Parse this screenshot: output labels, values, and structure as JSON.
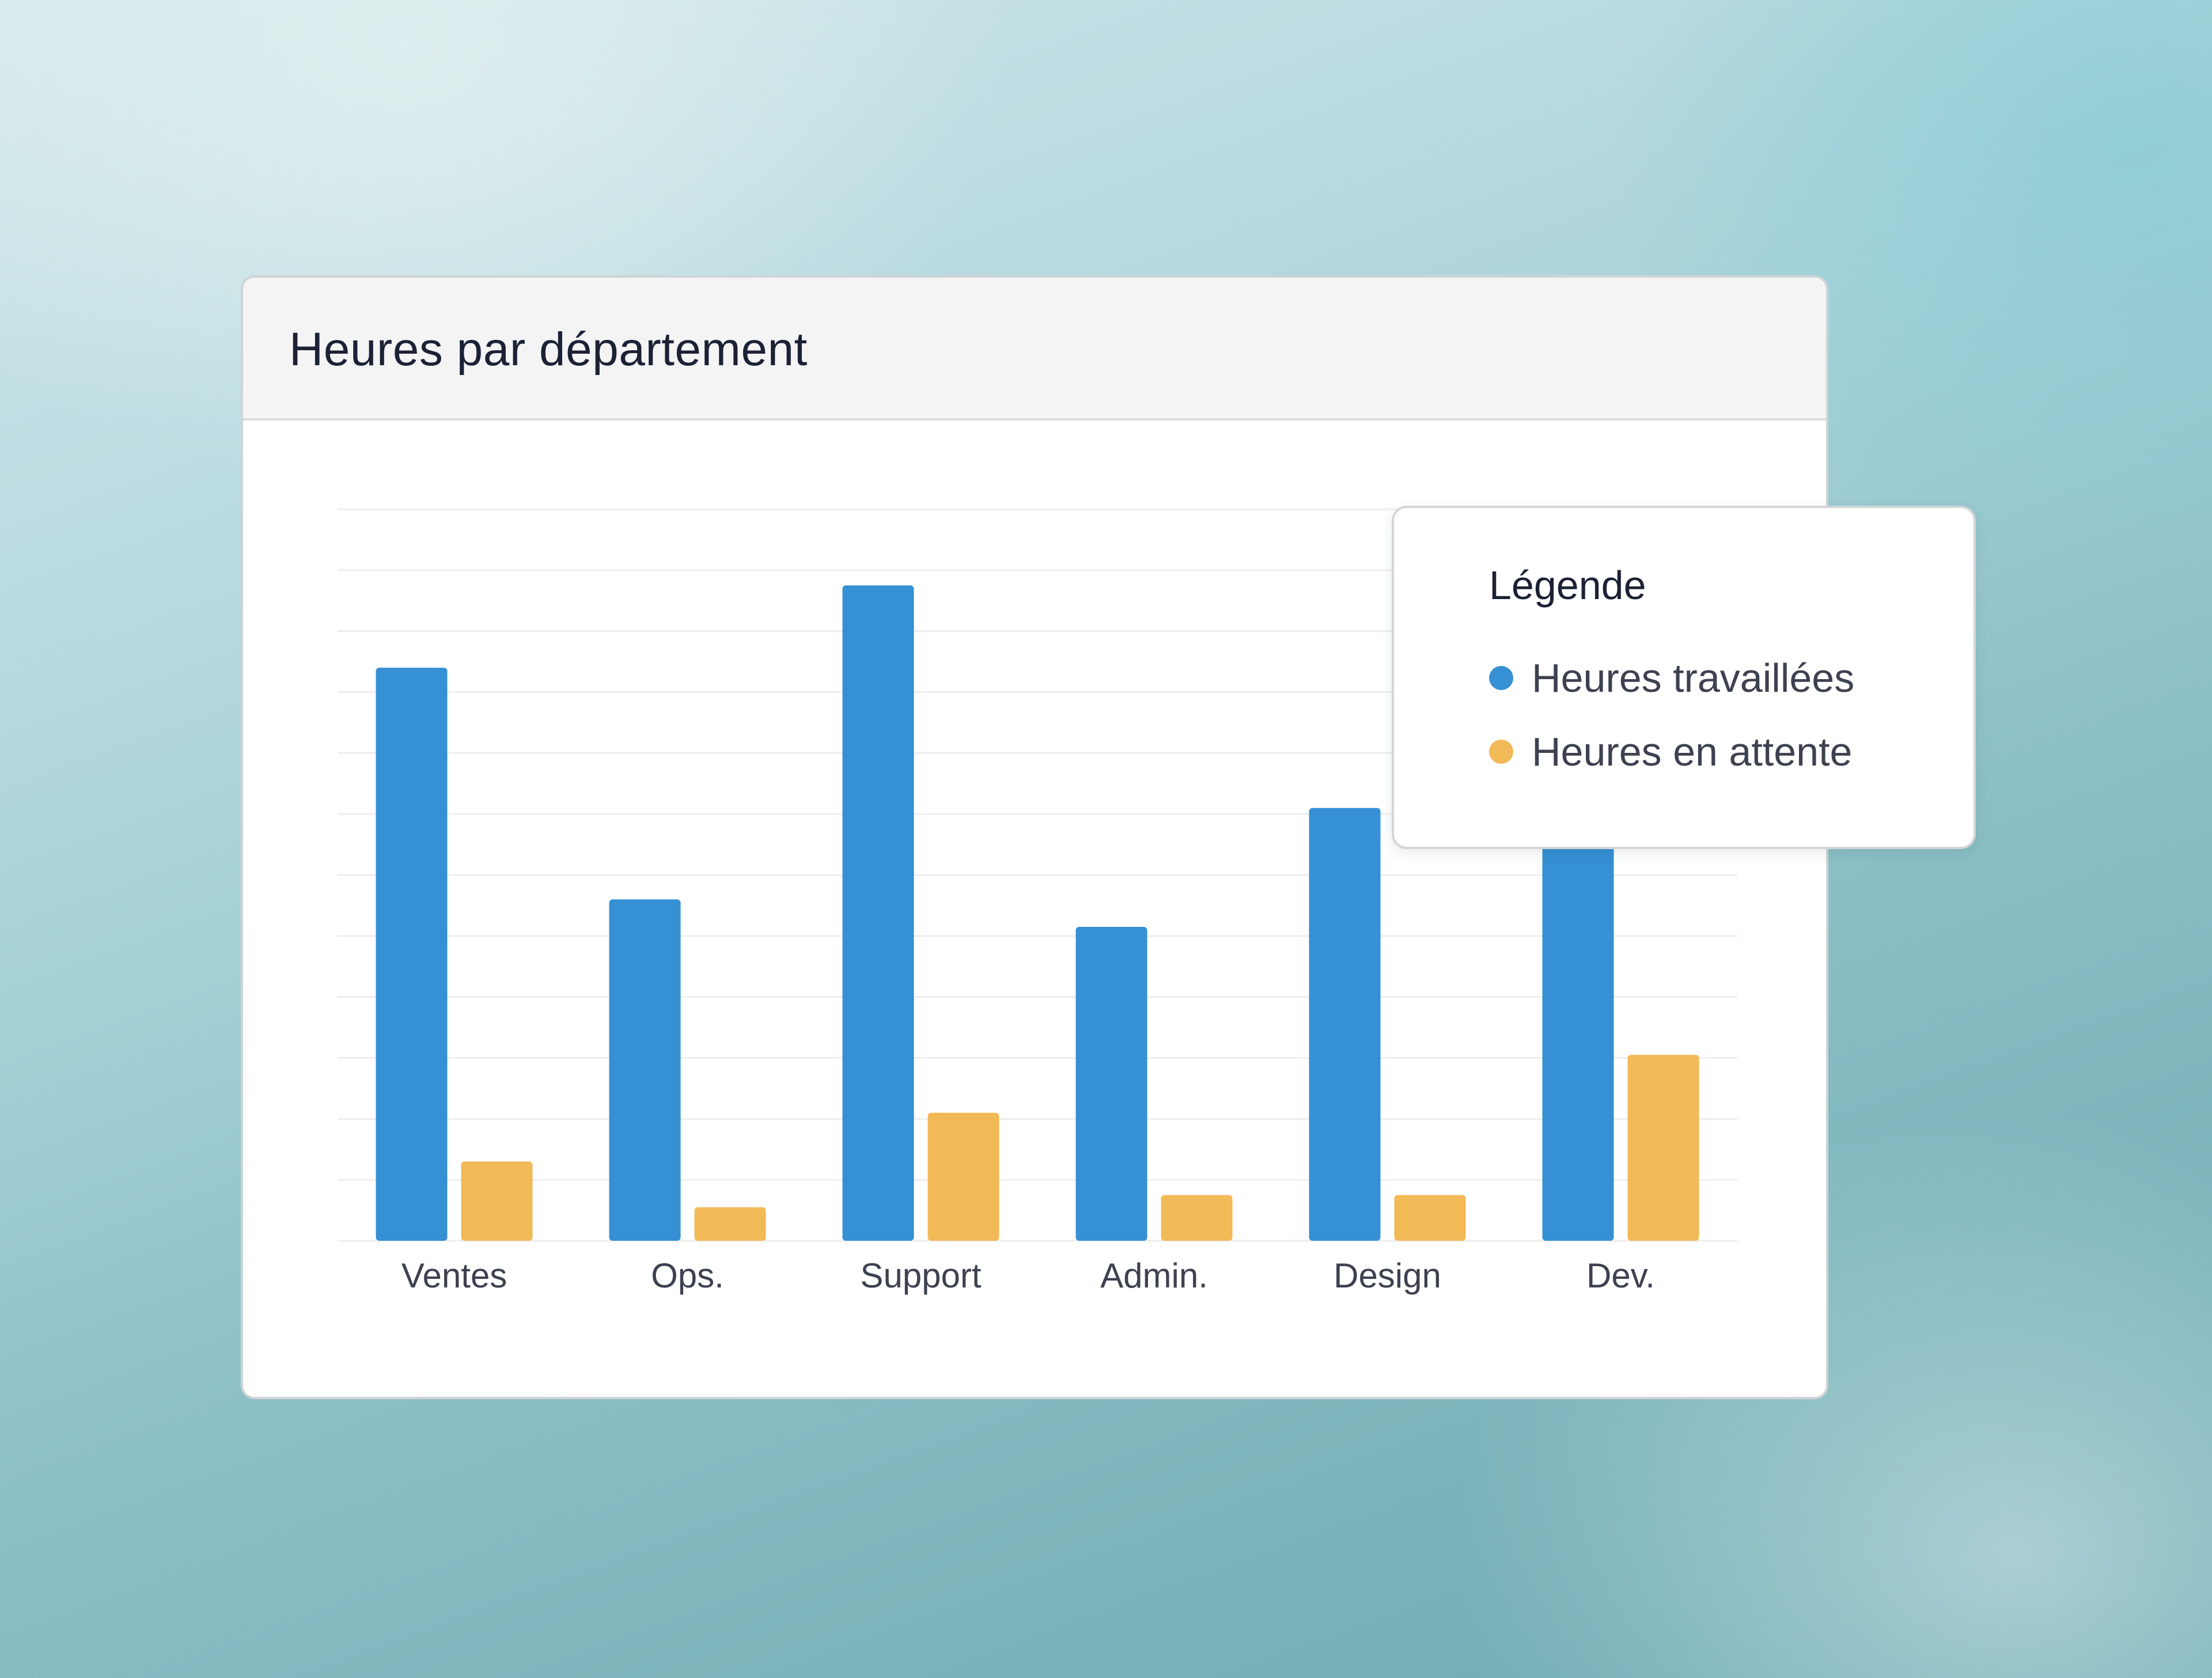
{
  "card": {
    "title": "Heures par département"
  },
  "legend": {
    "title": "Légende"
  },
  "colors": {
    "worked": "#3690d4",
    "pending": "#f2b957",
    "grid": "#eeeeee",
    "tick": "#3d4150"
  },
  "chart_data": {
    "type": "bar",
    "title": "Heures par département",
    "xlabel": "",
    "ylabel": "",
    "categories": [
      "Ventes",
      "Ops.",
      "Support",
      "Admin.",
      "Design",
      "Dev."
    ],
    "series": [
      {
        "name": "Heures travaillées",
        "color": "#3690d4",
        "values": [
          94,
          56,
          107.5,
          51.5,
          71,
          65
        ]
      },
      {
        "name": "Heures en attente",
        "color": "#f2b957",
        "values": [
          13,
          5.5,
          21,
          7.5,
          7.5,
          30.5
        ]
      }
    ],
    "ylim": [
      0,
      120
    ],
    "grid": true,
    "legend_position": "top-right"
  }
}
